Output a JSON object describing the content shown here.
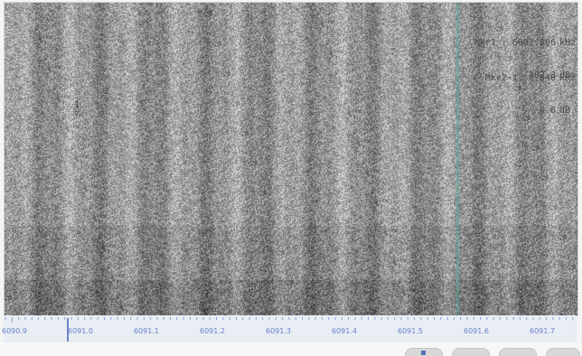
{
  "readouts": {
    "marker1": {
      "label": "Mkr1 : 6091.806",
      "freq_unit": "kHz",
      "level": "-102.3",
      "level_unit": "dBm"
    },
    "delta": {
      "label": "Mkr2-1: 0.048",
      "freq_unit": "kHz",
      "level": "-6.6",
      "level_unit": "dB"
    }
  },
  "markers": [
    {
      "id": "1",
      "glyph": "▽"
    },
    {
      "id": "2",
      "glyph": "▽"
    }
  ],
  "axis": {
    "tick_labels": [
      "6090.9",
      "6091.0",
      "6091.1",
      "6091.2",
      "6091.3",
      "6091.4",
      "6091.5",
      "6091.6",
      "6091.7"
    ]
  },
  "colors": {
    "trace_noise": "#8d8d8d",
    "marker_line": "#5aaaa0",
    "axis_text": "#6a83c8",
    "axis_bg": "#e9edf4"
  }
}
